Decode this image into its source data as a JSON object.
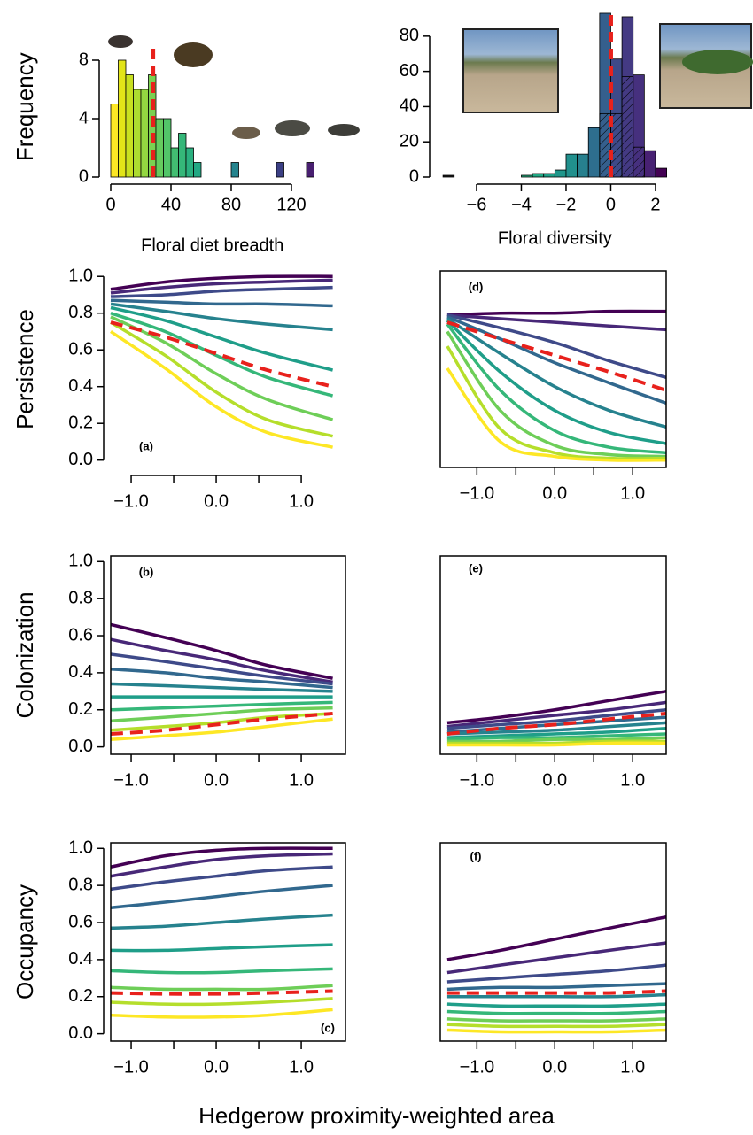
{
  "chart_data": [
    {
      "type": "histogram",
      "xlabel": "Floral diet breadth",
      "ylabel": "Frequency",
      "bins": [
        0,
        5,
        10,
        15,
        20,
        25,
        30,
        35,
        40,
        45,
        50,
        55,
        60,
        65,
        70,
        75,
        80,
        85,
        90,
        95,
        100,
        105,
        110,
        115,
        120,
        125,
        130,
        135
      ],
      "counts": [
        5,
        8,
        7,
        6,
        6,
        7,
        4,
        4,
        2,
        3,
        2,
        1,
        0,
        0,
        0,
        0,
        1,
        0,
        0,
        0,
        0,
        0,
        1,
        0,
        0,
        0,
        1
      ],
      "colors": [
        "#fde725",
        "#e2e418",
        "#c8e020",
        "#addc30",
        "#93d741",
        "#7ad151",
        "#65cb5e",
        "#52c569",
        "#42be71",
        "#35b779",
        "#2ab07f",
        "#22a884",
        "#1fa187",
        "#1e9b8a",
        "#21918c",
        "#238a8d",
        "#25848e",
        "#287d8e",
        "#2a768e",
        "#2d708e",
        "#30698e",
        "#33638d",
        "#3b3f84",
        "#404688",
        "#453882",
        "#46307e",
        "#481f70"
      ],
      "xlim": [
        0,
        135
      ],
      "ylim": [
        0,
        9
      ],
      "xticks": [
        0,
        40,
        80,
        120
      ],
      "yticks": [
        0,
        4,
        8
      ],
      "vline": 28,
      "vline_color": "#e8211c"
    },
    {
      "type": "histogram",
      "xlabel": "Floral diversity",
      "bins": [
        -7.5,
        -7,
        -6.5,
        -6,
        -5.5,
        -5,
        -4.5,
        -4,
        -3.5,
        -3,
        -2.5,
        -2,
        -1.5,
        -1,
        -0.5,
        0,
        0.5,
        1,
        1.5,
        2,
        2.5
      ],
      "counts": [
        1,
        0,
        0,
        0,
        0,
        0,
        0,
        1,
        2,
        2,
        4,
        13,
        13,
        28,
        93,
        67,
        91,
        58,
        15,
        5
      ],
      "hatched": [
        0,
        0,
        0,
        0,
        0,
        0,
        0,
        0,
        0,
        0,
        0,
        0,
        0,
        0,
        36,
        36,
        57,
        17,
        0,
        0
      ],
      "colors": [
        "#1a1a1a",
        "#29af7f",
        "#29af7f",
        "#29af7f",
        "#29af7f",
        "#29af7f",
        "#29af7f",
        "#29af7f",
        "#22a884",
        "#1fa088",
        "#1f968b",
        "#21908d",
        "#27808e",
        "#2e6e8e",
        "#355f8d",
        "#3e4a89",
        "#443a83",
        "#46307e",
        "#482173",
        "#440154"
      ],
      "xlim": [
        -7.5,
        2.5
      ],
      "ylim": [
        0,
        95
      ],
      "xticks": [
        {
          "value": -6,
          "label": "−6"
        },
        {
          "value": -4,
          "label": "−4"
        },
        {
          "value": -2,
          "label": "−2"
        },
        0,
        2
      ],
      "yticks": [
        0,
        20,
        40,
        60,
        80
      ],
      "vline": 0,
      "vline_color": "#e8211c"
    },
    {
      "type": "line",
      "panel_label": "(a)",
      "ylabel": "Persistence",
      "box": false,
      "x": [
        -1.24,
        -0.6,
        0,
        0.6,
        1.37
      ],
      "xlim": [
        -1.24,
        1.52
      ],
      "ylim": [
        -0.04,
        1.03
      ],
      "xticks": [
        {
          "value": -1,
          "label": "−1.0"
        },
        {
          "value": 0,
          "label": "0.0"
        },
        {
          "value": 1,
          "label": "1.0"
        }
      ],
      "xminor": [
        -0.5,
        0.5
      ],
      "yticks": [
        {
          "value": 0,
          "label": "0.0"
        },
        {
          "value": 0.2,
          "label": "0.2"
        },
        {
          "value": 0.4,
          "label": "0.4"
        },
        {
          "value": 0.6,
          "label": "0.6"
        },
        {
          "value": 0.8,
          "label": "0.8"
        },
        {
          "value": 1,
          "label": "1.0"
        }
      ],
      "series": [
        {
          "color": "#440154",
          "values": [
            0.93,
            0.97,
            0.99,
            1.0,
            1.0
          ]
        },
        {
          "color": "#482878",
          "values": [
            0.91,
            0.94,
            0.96,
            0.97,
            0.98
          ]
        },
        {
          "color": "#3e4a89",
          "values": [
            0.89,
            0.9,
            0.92,
            0.93,
            0.94
          ]
        },
        {
          "color": "#31688e",
          "values": [
            0.87,
            0.86,
            0.85,
            0.85,
            0.84
          ]
        },
        {
          "color": "#26828e",
          "values": [
            0.85,
            0.81,
            0.77,
            0.74,
            0.71
          ]
        },
        {
          "color": "#1f9e89",
          "values": [
            0.83,
            0.76,
            0.67,
            0.58,
            0.49
          ]
        },
        {
          "color": "#35b779",
          "values": [
            0.8,
            0.7,
            0.57,
            0.45,
            0.35
          ]
        },
        {
          "color": "#6ece58",
          "values": [
            0.78,
            0.64,
            0.47,
            0.33,
            0.22
          ]
        },
        {
          "color": "#b5de2b",
          "values": [
            0.75,
            0.57,
            0.37,
            0.22,
            0.13
          ]
        },
        {
          "color": "#fde725",
          "values": [
            0.7,
            0.5,
            0.29,
            0.15,
            0.07
          ]
        },
        {
          "color": "#e8211c",
          "dashed": true,
          "values": [
            0.75,
            0.67,
            0.58,
            0.49,
            0.4
          ]
        }
      ]
    },
    {
      "type": "line",
      "panel_label": "(d)",
      "box": true,
      "x": [
        -1.38,
        -0.7,
        0,
        0.7,
        1.43
      ],
      "xlim": [
        -1.47,
        1.43
      ],
      "ylim": [
        -0.04,
        1.03
      ],
      "xticks": [
        {
          "value": -1,
          "label": "−1.0"
        },
        {
          "value": 0,
          "label": "0.0"
        },
        {
          "value": 1,
          "label": "1.0"
        }
      ],
      "xminor": [
        -0.5,
        0.5
      ],
      "series": [
        {
          "color": "#440154",
          "values": [
            0.79,
            0.8,
            0.8,
            0.81,
            0.81
          ]
        },
        {
          "color": "#482878",
          "values": [
            0.79,
            0.77,
            0.75,
            0.73,
            0.71
          ]
        },
        {
          "color": "#3e4a89",
          "values": [
            0.79,
            0.72,
            0.64,
            0.54,
            0.45
          ]
        },
        {
          "color": "#31688e",
          "values": [
            0.78,
            0.66,
            0.53,
            0.42,
            0.31
          ]
        },
        {
          "color": "#26828e",
          "values": [
            0.77,
            0.58,
            0.4,
            0.27,
            0.18
          ]
        },
        {
          "color": "#1f9e89",
          "values": [
            0.76,
            0.48,
            0.27,
            0.15,
            0.09
          ]
        },
        {
          "color": "#35b779",
          "values": [
            0.74,
            0.38,
            0.16,
            0.07,
            0.04
          ]
        },
        {
          "color": "#6ece58",
          "values": [
            0.7,
            0.27,
            0.08,
            0.03,
            0.02
          ]
        },
        {
          "color": "#b5de2b",
          "values": [
            0.62,
            0.17,
            0.04,
            0.01,
            0.01
          ]
        },
        {
          "color": "#fde725",
          "values": [
            0.5,
            0.1,
            0.02,
            0.0,
            0.0
          ]
        },
        {
          "color": "#e8211c",
          "dashed": true,
          "values": [
            0.75,
            0.66,
            0.57,
            0.48,
            0.38
          ]
        }
      ]
    },
    {
      "type": "line",
      "panel_label": "(b)",
      "ylabel": "Colonization",
      "box": true,
      "x": [
        -1.24,
        -0.6,
        0,
        0.6,
        1.37
      ],
      "xlim": [
        -1.24,
        1.52
      ],
      "ylim": [
        -0.04,
        1.03
      ],
      "xticks": [
        {
          "value": -1,
          "label": "−1.0"
        },
        {
          "value": 0,
          "label": "0.0"
        },
        {
          "value": 1,
          "label": "1.0"
        }
      ],
      "xminor": [
        -0.5,
        0.5
      ],
      "yticks": [
        {
          "value": 0,
          "label": "0.0"
        },
        {
          "value": 0.2,
          "label": "0.2"
        },
        {
          "value": 0.4,
          "label": "0.4"
        },
        {
          "value": 0.6,
          "label": "0.6"
        },
        {
          "value": 0.8,
          "label": "0.8"
        },
        {
          "value": 1,
          "label": "1.0"
        }
      ],
      "series": [
        {
          "color": "#440154",
          "values": [
            0.66,
            0.59,
            0.52,
            0.44,
            0.37
          ]
        },
        {
          "color": "#482878",
          "values": [
            0.58,
            0.52,
            0.47,
            0.41,
            0.35
          ]
        },
        {
          "color": "#3e4a89",
          "values": [
            0.5,
            0.46,
            0.42,
            0.38,
            0.34
          ]
        },
        {
          "color": "#31688e",
          "values": [
            0.42,
            0.4,
            0.37,
            0.35,
            0.32
          ]
        },
        {
          "color": "#26828e",
          "values": [
            0.34,
            0.33,
            0.32,
            0.31,
            0.3
          ]
        },
        {
          "color": "#1f9e89",
          "values": [
            0.27,
            0.27,
            0.27,
            0.27,
            0.27
          ]
        },
        {
          "color": "#35b779",
          "values": [
            0.2,
            0.21,
            0.22,
            0.23,
            0.24
          ]
        },
        {
          "color": "#6ece58",
          "values": [
            0.14,
            0.16,
            0.18,
            0.2,
            0.21
          ]
        },
        {
          "color": "#b5de2b",
          "values": [
            0.09,
            0.11,
            0.13,
            0.16,
            0.18
          ]
        },
        {
          "color": "#fde725",
          "values": [
            0.04,
            0.06,
            0.08,
            0.11,
            0.15
          ]
        },
        {
          "color": "#e8211c",
          "dashed": true,
          "values": [
            0.07,
            0.09,
            0.12,
            0.15,
            0.18
          ]
        }
      ]
    },
    {
      "type": "line",
      "panel_label": "(e)",
      "box": true,
      "x": [
        -1.38,
        -0.7,
        0,
        0.7,
        1.43
      ],
      "xlim": [
        -1.47,
        1.43
      ],
      "ylim": [
        -0.04,
        1.03
      ],
      "xticks": [
        {
          "value": -1,
          "label": "−1.0"
        },
        {
          "value": 0,
          "label": "0.0"
        },
        {
          "value": 1,
          "label": "1.0"
        }
      ],
      "xminor": [
        -0.5,
        0.5
      ],
      "series": [
        {
          "color": "#440154",
          "values": [
            0.13,
            0.16,
            0.2,
            0.25,
            0.3
          ]
        },
        {
          "color": "#482878",
          "values": [
            0.11,
            0.14,
            0.17,
            0.2,
            0.24
          ]
        },
        {
          "color": "#3e4a89",
          "values": [
            0.1,
            0.12,
            0.14,
            0.17,
            0.2
          ]
        },
        {
          "color": "#31688e",
          "values": [
            0.08,
            0.1,
            0.12,
            0.14,
            0.16
          ]
        },
        {
          "color": "#26828e",
          "values": [
            0.07,
            0.08,
            0.09,
            0.11,
            0.13
          ]
        },
        {
          "color": "#1f9e89",
          "values": [
            0.05,
            0.06,
            0.07,
            0.08,
            0.1
          ]
        },
        {
          "color": "#35b779",
          "values": [
            0.04,
            0.05,
            0.05,
            0.06,
            0.07
          ]
        },
        {
          "color": "#6ece58",
          "values": [
            0.03,
            0.03,
            0.04,
            0.04,
            0.05
          ]
        },
        {
          "color": "#b5de2b",
          "values": [
            0.02,
            0.02,
            0.02,
            0.03,
            0.03
          ]
        },
        {
          "color": "#fde725",
          "values": [
            0.01,
            0.01,
            0.01,
            0.02,
            0.02
          ]
        },
        {
          "color": "#e8211c",
          "dashed": true,
          "values": [
            0.07,
            0.1,
            0.12,
            0.15,
            0.18
          ]
        }
      ]
    },
    {
      "type": "line",
      "panel_label": "(c)",
      "ylabel": "Occupancy",
      "box": true,
      "x": [
        -1.24,
        -0.6,
        0,
        0.6,
        1.37
      ],
      "xlim": [
        -1.24,
        1.52
      ],
      "ylim": [
        -0.04,
        1.03
      ],
      "xticks": [
        {
          "value": -1,
          "label": "−1.0"
        },
        {
          "value": 0,
          "label": "0.0"
        },
        {
          "value": 1,
          "label": "1.0"
        }
      ],
      "xminor": [
        -0.5,
        0.5
      ],
      "yticks": [
        {
          "value": 0,
          "label": "0.0"
        },
        {
          "value": 0.2,
          "label": "0.2"
        },
        {
          "value": 0.4,
          "label": "0.4"
        },
        {
          "value": 0.6,
          "label": "0.6"
        },
        {
          "value": 0.8,
          "label": "0.8"
        },
        {
          "value": 1,
          "label": "1.0"
        }
      ],
      "series": [
        {
          "color": "#440154",
          "values": [
            0.9,
            0.96,
            0.99,
            1.0,
            1.0
          ]
        },
        {
          "color": "#482878",
          "values": [
            0.85,
            0.9,
            0.94,
            0.96,
            0.97
          ]
        },
        {
          "color": "#3e4a89",
          "values": [
            0.78,
            0.82,
            0.85,
            0.88,
            0.9
          ]
        },
        {
          "color": "#31688e",
          "values": [
            0.68,
            0.71,
            0.74,
            0.77,
            0.8
          ]
        },
        {
          "color": "#26828e",
          "values": [
            0.57,
            0.58,
            0.6,
            0.62,
            0.64
          ]
        },
        {
          "color": "#1f9e89",
          "values": [
            0.45,
            0.45,
            0.46,
            0.47,
            0.48
          ]
        },
        {
          "color": "#35b779",
          "values": [
            0.34,
            0.33,
            0.33,
            0.34,
            0.35
          ]
        },
        {
          "color": "#6ece58",
          "values": [
            0.25,
            0.24,
            0.24,
            0.24,
            0.26
          ]
        },
        {
          "color": "#b5de2b",
          "values": [
            0.17,
            0.16,
            0.16,
            0.17,
            0.19
          ]
        },
        {
          "color": "#fde725",
          "values": [
            0.1,
            0.09,
            0.09,
            0.1,
            0.13
          ]
        },
        {
          "color": "#e8211c",
          "dashed": true,
          "values": [
            0.22,
            0.215,
            0.215,
            0.22,
            0.23
          ]
        }
      ]
    },
    {
      "type": "line",
      "panel_label": "(f)",
      "box": true,
      "x": [
        -1.38,
        -0.7,
        0,
        0.7,
        1.43
      ],
      "xlim": [
        -1.47,
        1.43
      ],
      "ylim": [
        -0.04,
        1.03
      ],
      "xticks": [
        {
          "value": -1,
          "label": "−1.0"
        },
        {
          "value": 0,
          "label": "0.0"
        },
        {
          "value": 1,
          "label": "1.0"
        }
      ],
      "xminor": [
        -0.5,
        0.5
      ],
      "xlabel": "Hedgerow proximity-weighted area",
      "series": [
        {
          "color": "#440154",
          "values": [
            0.4,
            0.45,
            0.51,
            0.57,
            0.63
          ]
        },
        {
          "color": "#482878",
          "values": [
            0.33,
            0.37,
            0.41,
            0.45,
            0.49
          ]
        },
        {
          "color": "#3e4a89",
          "values": [
            0.28,
            0.3,
            0.32,
            0.34,
            0.37
          ]
        },
        {
          "color": "#31688e",
          "values": [
            0.24,
            0.25,
            0.25,
            0.26,
            0.27
          ]
        },
        {
          "color": "#26828e",
          "values": [
            0.2,
            0.2,
            0.2,
            0.2,
            0.21
          ]
        },
        {
          "color": "#1f9e89",
          "values": [
            0.16,
            0.15,
            0.15,
            0.15,
            0.16
          ]
        },
        {
          "color": "#35b779",
          "values": [
            0.12,
            0.11,
            0.11,
            0.11,
            0.12
          ]
        },
        {
          "color": "#6ece58",
          "values": [
            0.08,
            0.07,
            0.07,
            0.07,
            0.08
          ]
        },
        {
          "color": "#b5de2b",
          "values": [
            0.05,
            0.04,
            0.04,
            0.04,
            0.05
          ]
        },
        {
          "color": "#fde725",
          "values": [
            0.02,
            0.01,
            0.01,
            0.01,
            0.02
          ]
        },
        {
          "color": "#e8211c",
          "dashed": true,
          "values": [
            0.22,
            0.22,
            0.22,
            0.22,
            0.23
          ]
        }
      ]
    }
  ]
}
